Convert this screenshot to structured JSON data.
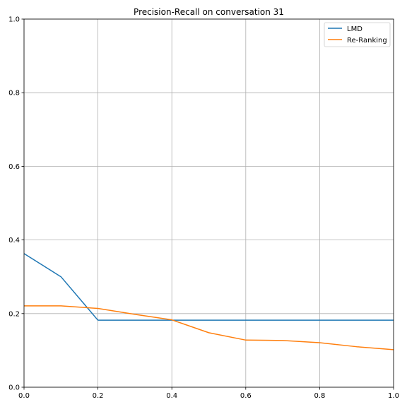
{
  "chart_data": {
    "type": "line",
    "title": "Precision-Recall on conversation 31",
    "xlabel": "",
    "ylabel": "",
    "xlim": [
      0,
      1
    ],
    "ylim": [
      0,
      1
    ],
    "grid": true,
    "legend_position": "top-right",
    "x_ticks": [
      0.0,
      0.2,
      0.4,
      0.6,
      0.8,
      1.0
    ],
    "x_tick_labels": [
      "0.0",
      "0.2",
      "0.4",
      "0.6",
      "0.8",
      "1.0"
    ],
    "y_ticks": [
      0.0,
      0.2,
      0.4,
      0.6,
      0.8,
      1.0
    ],
    "y_tick_labels": [
      "0.0",
      "0.2",
      "0.4",
      "0.6",
      "0.8",
      "1.0"
    ],
    "series": [
      {
        "name": "LMD",
        "color": "#1f77b4",
        "x": [
          0.0,
          0.1,
          0.2,
          0.3,
          0.4,
          0.5,
          0.6,
          0.7,
          0.8,
          0.9,
          1.0
        ],
        "y": [
          0.363,
          0.3,
          0.182,
          0.182,
          0.182,
          0.182,
          0.182,
          0.182,
          0.182,
          0.182,
          0.182
        ]
      },
      {
        "name": "Re-Ranking",
        "color": "#ff7f0e",
        "x": [
          0.0,
          0.1,
          0.2,
          0.3,
          0.4,
          0.5,
          0.6,
          0.7,
          0.8,
          0.9,
          1.0
        ],
        "y": [
          0.221,
          0.221,
          0.214,
          0.198,
          0.183,
          0.148,
          0.128,
          0.127,
          0.121,
          0.11,
          0.102
        ]
      }
    ]
  }
}
